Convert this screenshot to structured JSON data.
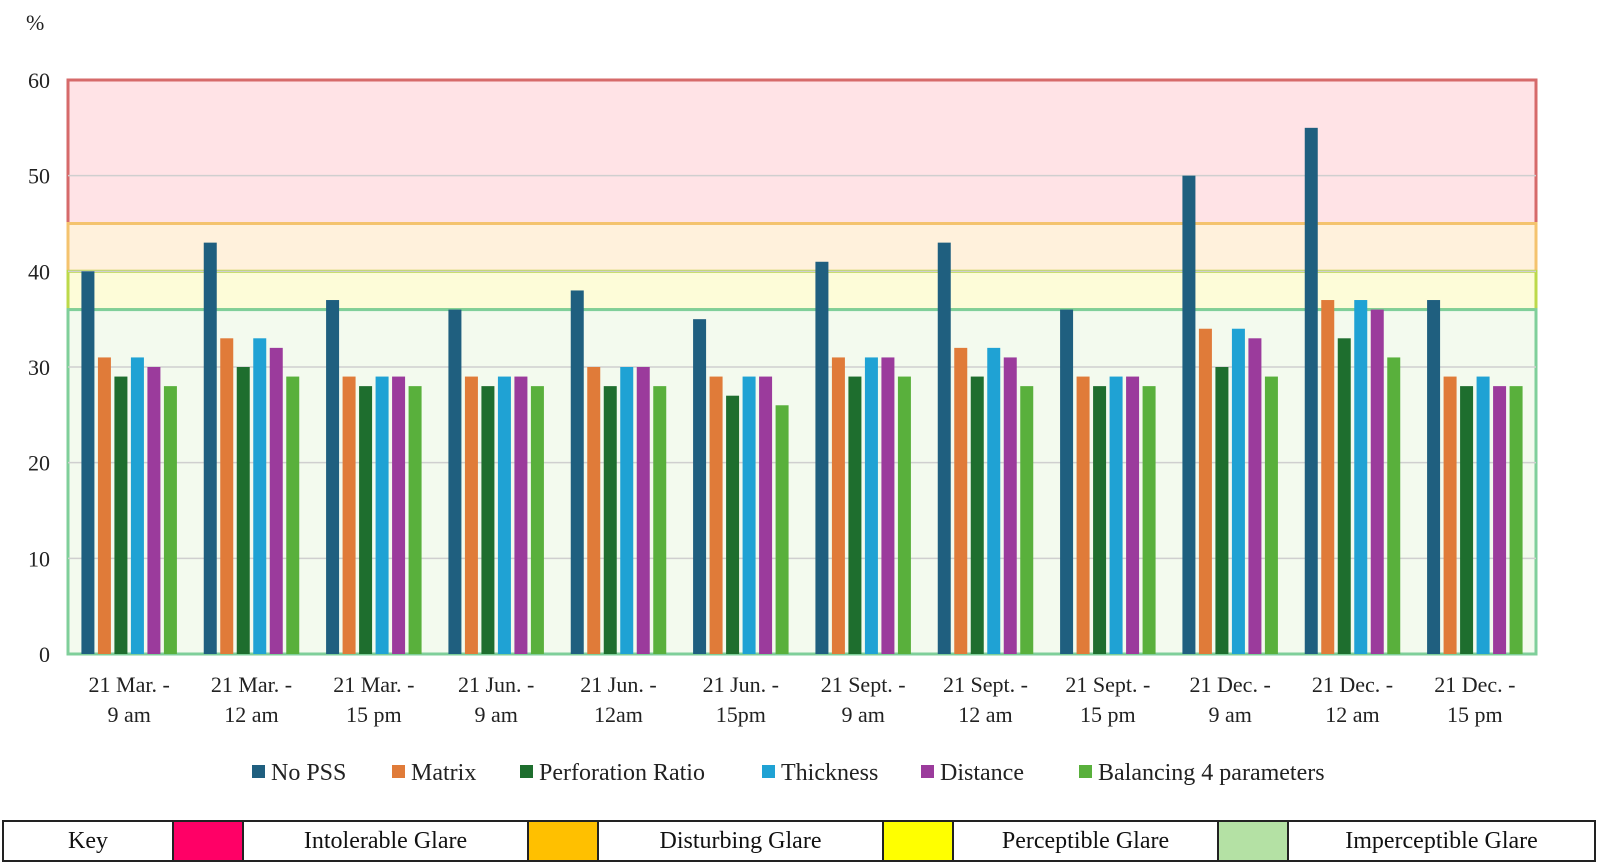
{
  "chart_data": {
    "type": "bar",
    "ylabel": "%",
    "ylim": [
      0,
      60
    ],
    "yticks": [
      0,
      10,
      20,
      30,
      40,
      50,
      60
    ],
    "grid": true,
    "legend_position": "bottom",
    "categories": [
      [
        "21 Mar. -",
        "9 am"
      ],
      [
        "21 Mar. -",
        "12 am"
      ],
      [
        "21 Mar. -",
        "15 pm"
      ],
      [
        "21 Jun. -",
        "9 am"
      ],
      [
        "21 Jun. -",
        "12am"
      ],
      [
        "21 Jun. -",
        "15pm"
      ],
      [
        "21 Sept. -",
        "9 am"
      ],
      [
        "21 Sept. -",
        "12 am"
      ],
      [
        "21 Sept. -",
        "15 pm"
      ],
      [
        "21 Dec. -",
        "9 am"
      ],
      [
        "21 Dec. -",
        "12 am"
      ],
      [
        "21 Dec. -",
        "15 pm"
      ]
    ],
    "series": [
      {
        "name": "No PSS",
        "color": "#1f5f7f",
        "values": [
          40,
          43,
          37,
          36,
          38,
          35,
          41,
          43,
          36,
          50,
          55,
          37
        ]
      },
      {
        "name": "Matrix",
        "color": "#e07b39",
        "values": [
          31,
          33,
          29,
          29,
          30,
          29,
          31,
          32,
          29,
          34,
          37,
          29
        ]
      },
      {
        "name": "Perforation Ratio",
        "color": "#1e6e2e",
        "values": [
          29,
          30,
          28,
          28,
          28,
          27,
          29,
          29,
          28,
          30,
          33,
          28
        ]
      },
      {
        "name": "Thickness",
        "color": "#1fa2d4",
        "values": [
          31,
          33,
          29,
          29,
          30,
          29,
          31,
          32,
          29,
          34,
          37,
          29
        ]
      },
      {
        "name": "Distance",
        "color": "#9b3b9c",
        "values": [
          30,
          32,
          29,
          29,
          30,
          29,
          31,
          31,
          29,
          33,
          36,
          28
        ]
      },
      {
        "name": "Balancing 4 parameters",
        "color": "#59b03c",
        "values": [
          28,
          29,
          28,
          28,
          28,
          26,
          29,
          28,
          28,
          29,
          31,
          28
        ]
      }
    ],
    "zones": [
      {
        "name": "Intolerable Glare",
        "from": 45,
        "to": 60,
        "fill": "#ffe3e6",
        "stroke": "#d66a6a"
      },
      {
        "name": "Disturbing Glare",
        "from": 40,
        "to": 45,
        "fill": "#fff1dc",
        "stroke": "#f4c36e"
      },
      {
        "name": "Perceptible Glare",
        "from": 36,
        "to": 40,
        "fill": "#fdfcd8",
        "stroke": "#bcd94a"
      },
      {
        "name": "Imperceptible Glare",
        "from": 0,
        "to": 36,
        "fill": "#f3faee",
        "stroke": "#7fcf9a"
      }
    ]
  },
  "key": {
    "label": "Key",
    "items": [
      {
        "label": "Intolerable Glare",
        "swatch": "#ff0066"
      },
      {
        "label": "Disturbing Glare",
        "swatch": "#ffc000"
      },
      {
        "label": "Perceptible Glare",
        "swatch": "#ffff00"
      },
      {
        "label": "Imperceptible Glare",
        "swatch": "#b4e1a4"
      }
    ]
  }
}
